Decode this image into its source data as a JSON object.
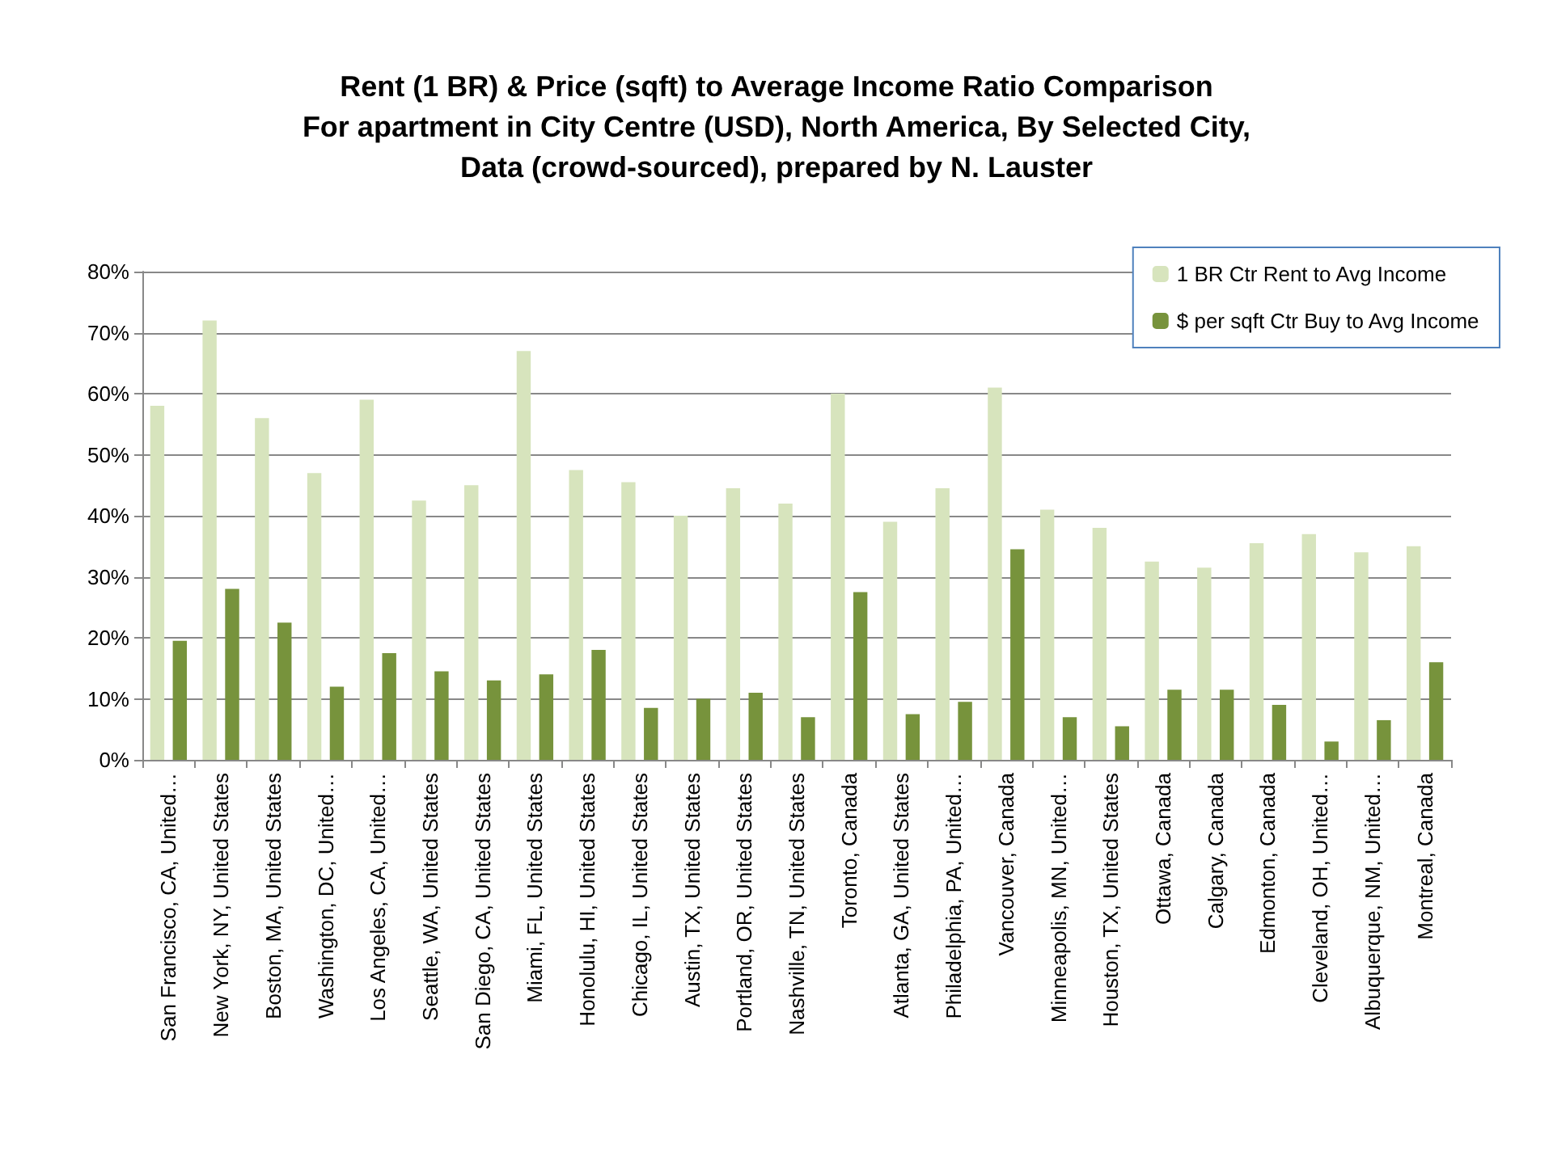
{
  "chart_data": {
    "type": "bar",
    "title": "Rent (1 BR) & Price (sqft) to Average Income Ratio Comparison\nFor apartment in City Centre (USD), North America, By Selected City,\nData (crowd-sourced), prepared by N. Lauster",
    "categories": [
      "San Francisco, CA, United…",
      "New York, NY, United States",
      "Boston, MA, United States",
      "Washington, DC, United…",
      "Los Angeles, CA, United…",
      "Seattle, WA, United States",
      "San Diego, CA, United States",
      "Miami, FL, United States",
      "Honolulu, HI, United States",
      "Chicago, IL, United States",
      "Austin, TX, United States",
      "Portland, OR, United States",
      "Nashville, TN, United States",
      "Toronto, Canada",
      "Atlanta, GA, United States",
      "Philadelphia, PA, United…",
      "Vancouver, Canada",
      "Minneapolis, MN, United…",
      "Houston, TX, United States",
      "Ottawa, Canada",
      "Calgary, Canada",
      "Edmonton, Canada",
      "Cleveland, OH, United…",
      "Albuquerque, NM, United…",
      "Montreal, Canada"
    ],
    "series": [
      {
        "name": "1 BR Ctr Rent to Avg Income",
        "color": "#d7e4bd",
        "values": [
          58,
          72,
          56,
          47,
          59,
          42.5,
          45,
          67,
          47.5,
          45.5,
          40,
          44.5,
          42,
          60,
          39,
          44.5,
          61,
          41,
          38,
          32.5,
          31.5,
          35.5,
          37,
          34,
          35
        ]
      },
      {
        "name": "$ per sqft Ctr Buy to Avg Income",
        "color": "#77933c",
        "values": [
          19.5,
          28,
          22.5,
          12,
          17.5,
          14.5,
          13,
          14,
          18,
          8.5,
          10,
          11,
          7,
          27.5,
          7.5,
          9.5,
          34.5,
          7,
          5.5,
          11.5,
          11.5,
          9,
          3,
          6.5,
          16
        ]
      }
    ],
    "ylim": [
      0,
      80
    ],
    "yticks": [
      {
        "value": 0,
        "label": "0%"
      },
      {
        "value": 10,
        "label": "10%"
      },
      {
        "value": 20,
        "label": "20%"
      },
      {
        "value": 30,
        "label": "30%"
      },
      {
        "value": 40,
        "label": "40%"
      },
      {
        "value": 50,
        "label": "50%"
      },
      {
        "value": 60,
        "label": "60%"
      },
      {
        "value": 70,
        "label": "70%"
      },
      {
        "value": 80,
        "label": "80%"
      }
    ],
    "grid": "y",
    "legend": "top right"
  }
}
